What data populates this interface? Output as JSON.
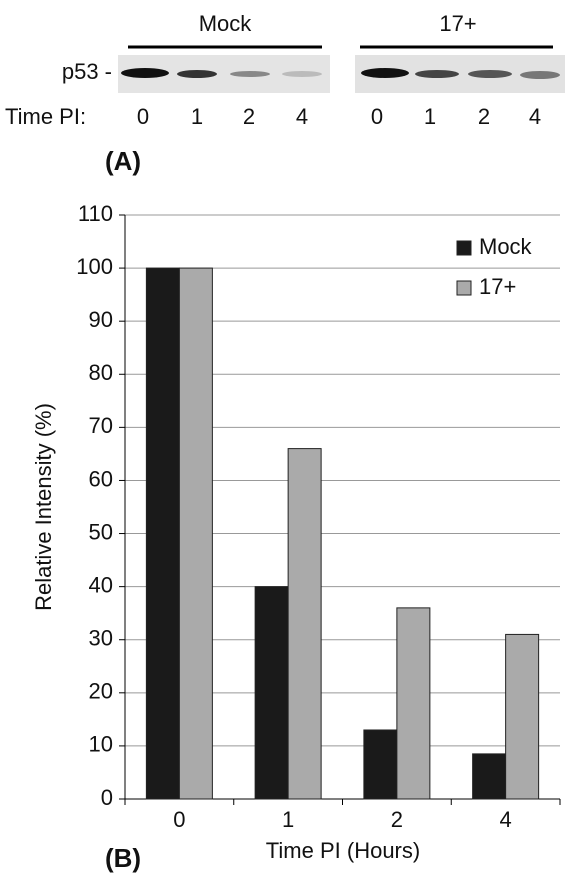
{
  "blot": {
    "band_label": "p53 -",
    "row_label": "Time PI:",
    "panel_label": "(A)",
    "groups": [
      {
        "name": "Mock",
        "lanes": [
          "0",
          "1",
          "2",
          "4"
        ]
      },
      {
        "name": "17+",
        "lanes": [
          "0",
          "1",
          "2",
          "4"
        ]
      }
    ]
  },
  "chart_data": {
    "type": "bar",
    "panel_label": "(B)",
    "x_label": "Time PI (Hours)",
    "y_label": "Relative Intensity (%)",
    "categories": [
      "0",
      "1",
      "2",
      "4"
    ],
    "series": [
      {
        "name": "Mock",
        "color": "#1a1a1a",
        "values": [
          100,
          40,
          13,
          8.5
        ]
      },
      {
        "name": "17+",
        "color": "#aaaaaa",
        "values": [
          100,
          66,
          36,
          31
        ]
      }
    ],
    "ylim": [
      0,
      110
    ],
    "yticks": [
      0,
      10,
      20,
      30,
      40,
      50,
      60,
      70,
      80,
      90,
      100,
      110
    ],
    "grid": true,
    "legend": "top-right"
  }
}
